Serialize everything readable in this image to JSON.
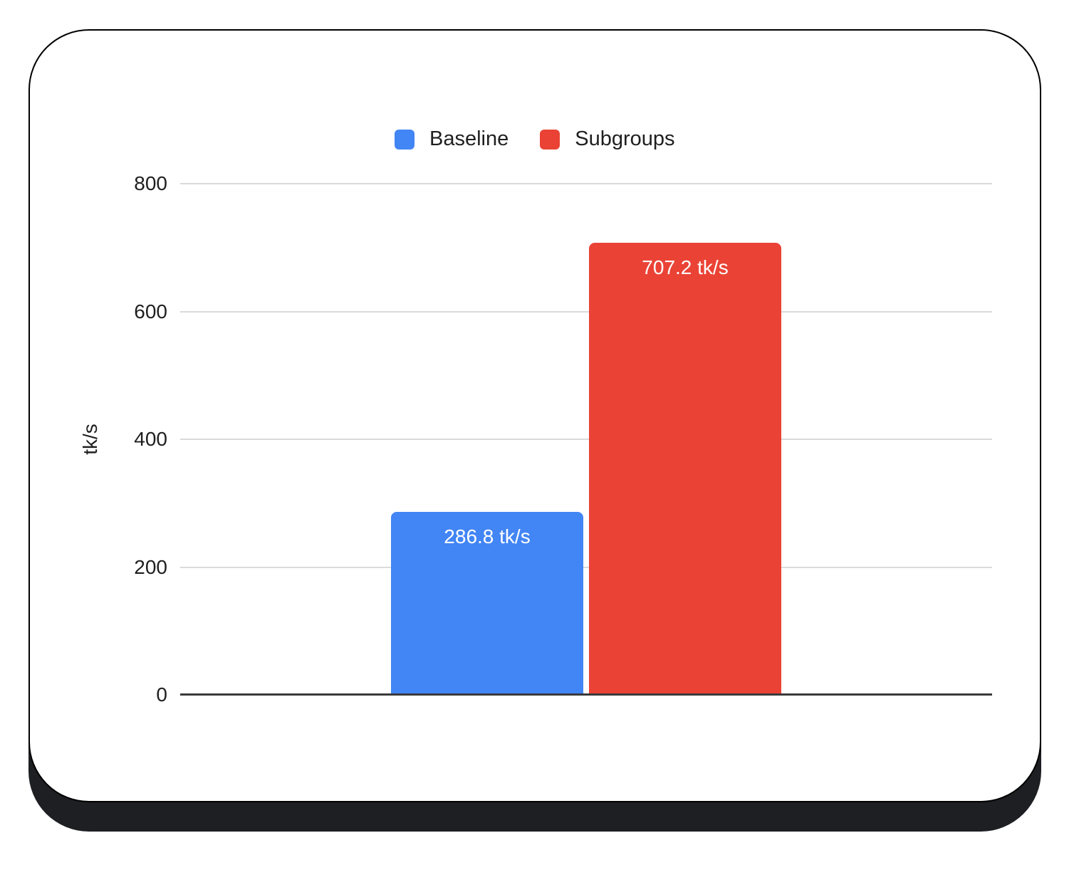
{
  "page": {
    "background": "#ffffff"
  },
  "card": {
    "background": "#ffffff",
    "border_color": "#000000",
    "shadow_color": "#1e1f23"
  },
  "legend": [
    {
      "label": "Baseline",
      "color": "#4285F4"
    },
    {
      "label": "Subgroups",
      "color": "#EA4335"
    }
  ],
  "chart_data": {
    "type": "bar",
    "categories": [
      "Baseline",
      "Subgroups"
    ],
    "values": [
      286.8,
      707.2
    ],
    "bar_labels": [
      "286.8 tk/s",
      "707.2 tk/s"
    ],
    "series_colors": [
      "#4285F4",
      "#EA4335"
    ],
    "title": "",
    "xlabel": "",
    "ylabel": "tk/s",
    "ylim": [
      0,
      800
    ],
    "yticks": [
      0,
      200,
      400,
      600,
      800
    ],
    "grid": true,
    "legend_position": "top",
    "gridline_color": "#dadada",
    "axis_line_color": "#3a3a3a",
    "tick_label_color": "#1f1f1f",
    "bar_label_color": "#ffffff"
  }
}
